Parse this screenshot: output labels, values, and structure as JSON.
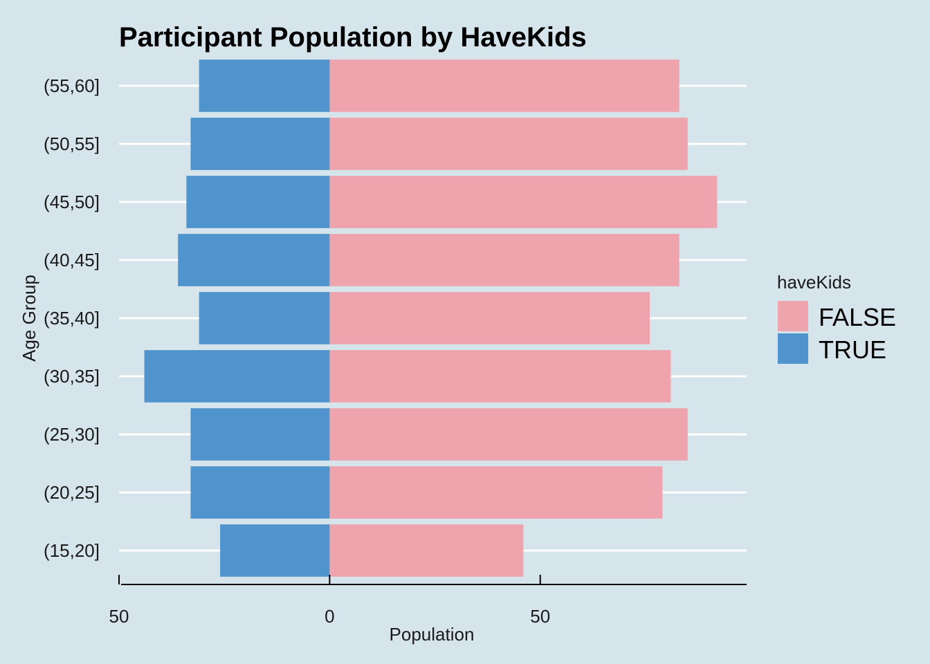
{
  "chart_data": {
    "type": "bar",
    "orientation": "horizontal",
    "layout": "population-pyramid",
    "title": "Participant Population by HaveKids",
    "xlabel": "Population",
    "ylabel": "Age Group",
    "categories": [
      "(15,20]",
      "(20,25]",
      "(25,30]",
      "(30,35]",
      "(35,40]",
      "(40,45]",
      "(45,50]",
      "(50,55]",
      "(55,60]"
    ],
    "series": [
      {
        "name": "FALSE",
        "color": "#eea3ad",
        "side": "right",
        "values": [
          46,
          79,
          85,
          81,
          76,
          83,
          92,
          85,
          83
        ]
      },
      {
        "name": "TRUE",
        "color": "#4f94cd",
        "side": "left",
        "values": [
          26,
          33,
          33,
          44,
          31,
          36,
          34,
          33,
          31
        ]
      }
    ],
    "xlim": [
      -50,
      99
    ],
    "x_ticks": [
      {
        "value": -50,
        "label": "50"
      },
      {
        "value": 0,
        "label": "0"
      },
      {
        "value": 50,
        "label": "50"
      }
    ],
    "grid": true,
    "legend": {
      "title": "haveKids",
      "position": "right",
      "entries": [
        "FALSE",
        "TRUE"
      ]
    }
  }
}
